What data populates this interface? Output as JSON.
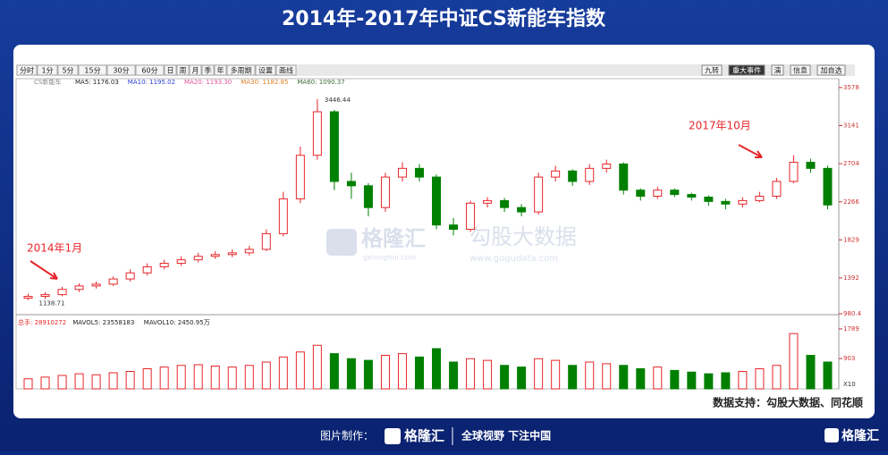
{
  "title": "2014年-2017年中证CS新能车指数",
  "toolbar": {
    "left": [
      "分时",
      "1分",
      "5分",
      "15分",
      "30分",
      "60分",
      "日",
      "周",
      "月",
      "季",
      "年",
      "多周期",
      "设置",
      "画线"
    ],
    "right": [
      "九转",
      "重大事件",
      "演",
      "信息",
      "加自选"
    ]
  },
  "indicators": {
    "name": "CS新能车",
    "items": [
      {
        "text": "MA5: 1176.03",
        "color": "#222222"
      },
      {
        "text": "MA10: 1195.02",
        "color": "#2b3fd6"
      },
      {
        "text": "MA20: 1193.30",
        "color": "#e0559a"
      },
      {
        "text": "MA30: 1182.85",
        "color": "#e0802a"
      },
      {
        "text": "MA60: 1090.37",
        "color": "#3a6e3a"
      }
    ]
  },
  "chart_data": {
    "type": "candlestick",
    "open": [
      1160,
      1180,
      1200,
      1260,
      1300,
      1320,
      1380,
      1450,
      1520,
      1560,
      1600,
      1640,
      1660,
      1680,
      1720,
      1900,
      2300,
      2800,
      3300,
      2500,
      2450,
      2200,
      2550,
      2650,
      2550,
      2000,
      1950,
      2250,
      2280,
      2200,
      2150,
      2550,
      2620,
      2500,
      2650,
      2700,
      2400,
      2330,
      2400,
      2350,
      2320,
      2270,
      2240,
      2280,
      2330,
      2500,
      2720,
      2650
    ],
    "high": [
      1210,
      1230,
      1290,
      1330,
      1350,
      1410,
      1490,
      1560,
      1600,
      1640,
      1680,
      1700,
      1720,
      1760,
      1950,
      2380,
      2900,
      3446.44,
      3320,
      2600,
      2480,
      2600,
      2720,
      2700,
      2580,
      2080,
      2280,
      2320,
      2310,
      2240,
      2600,
      2680,
      2640,
      2700,
      2750,
      2720,
      2420,
      2440,
      2420,
      2370,
      2340,
      2300,
      2320,
      2380,
      2540,
      2800,
      2760,
      2680
    ],
    "low": [
      1138.71,
      1150,
      1180,
      1230,
      1270,
      1300,
      1350,
      1420,
      1490,
      1530,
      1570,
      1610,
      1630,
      1650,
      1700,
      1870,
      2250,
      2750,
      2400,
      2300,
      2100,
      2150,
      2500,
      2500,
      1950,
      1880,
      1920,
      2200,
      2150,
      2100,
      2120,
      2500,
      2450,
      2460,
      2600,
      2350,
      2280,
      2300,
      2320,
      2280,
      2220,
      2180,
      2200,
      2260,
      2300,
      2480,
      2600,
      2180
    ],
    "close": [
      1180,
      1200,
      1260,
      1300,
      1320,
      1380,
      1450,
      1520,
      1560,
      1600,
      1640,
      1660,
      1680,
      1720,
      1900,
      2300,
      2800,
      3300,
      2500,
      2450,
      2200,
      2550,
      2650,
      2550,
      2000,
      1950,
      2250,
      2280,
      2200,
      2150,
      2550,
      2620,
      2500,
      2650,
      2700,
      2400,
      2330,
      2400,
      2350,
      2320,
      2270,
      2240,
      2280,
      2330,
      2500,
      2720,
      2650,
      2230
    ],
    "ylim": [
      980.4,
      3639
    ],
    "yticks": [
      3578,
      3141,
      2704,
      2266,
      1829,
      1392,
      980.4
    ],
    "up_color": "#e8262a",
    "down_color": "#008000",
    "annotations": [
      "2014年1月",
      "2017年10月"
    ],
    "volume": {
      "header": [
        {
          "text": "总手: 28910272",
          "color": "#e8262a"
        },
        {
          "text": "MAVOL5: 23558183",
          "color": "#222222"
        },
        {
          "text": "MAVOL10: 2450.95万",
          "color": "#222222"
        }
      ],
      "values": [
        300,
        350,
        400,
        450,
        420,
        480,
        520,
        600,
        650,
        700,
        720,
        680,
        650,
        700,
        800,
        950,
        1100,
        1300,
        1050,
        900,
        850,
        1000,
        1050,
        950,
        1200,
        800,
        900,
        850,
        700,
        650,
        900,
        850,
        700,
        800,
        750,
        700,
        600,
        650,
        550,
        500,
        450,
        480,
        520,
        600,
        700,
        1650,
        1000,
        800
      ],
      "ylim": [
        0,
        2000
      ],
      "yticks": [
        1789,
        903
      ],
      "unit": "X10"
    }
  },
  "watermark": {
    "brand": "格隆汇",
    "brand_site": "gelonghui.com",
    "data": "勾股大数据",
    "data_site": "www.gogudata.com"
  },
  "source": "数据支持：勾股大数据、同花顺",
  "footer": {
    "made_by": "图片制作：",
    "brand": "格隆汇",
    "slogan": "全球视野 下注中国",
    "corner": "格隆汇"
  }
}
